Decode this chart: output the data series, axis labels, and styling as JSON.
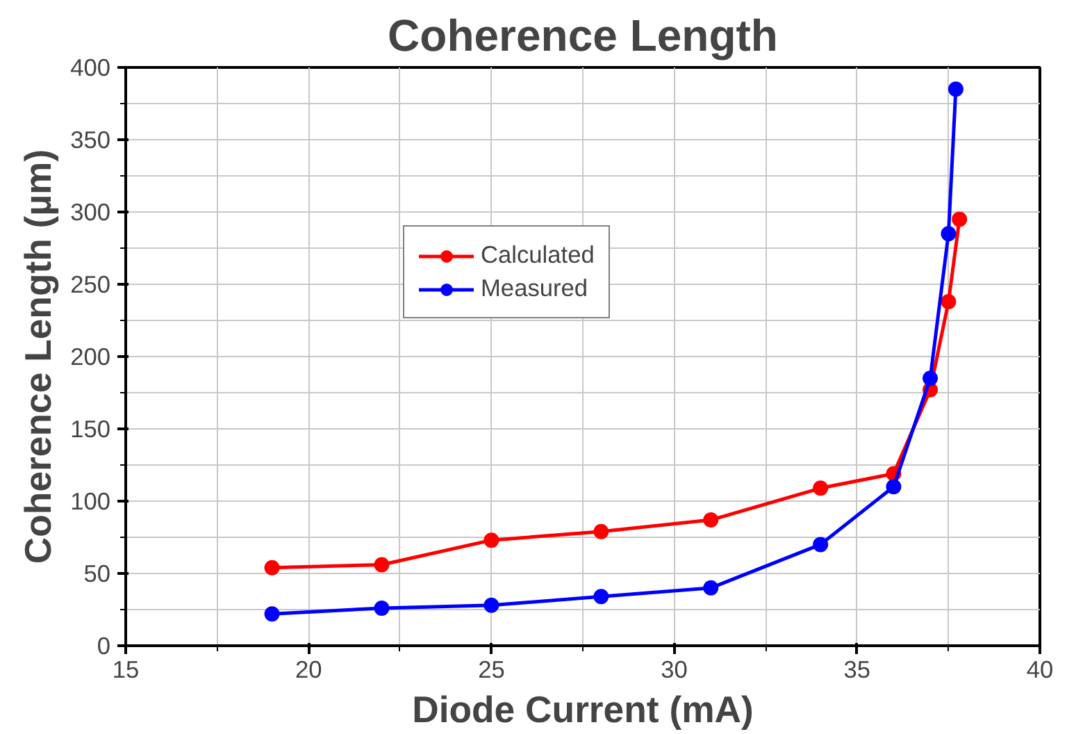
{
  "chart_data": {
    "type": "line",
    "title": "Coherence Length",
    "xlabel": "Diode Current (mA)",
    "ylabel": "Coherence Length (µm)",
    "xlim": [
      15,
      40
    ],
    "xticks": [
      15,
      20,
      25,
      30,
      35,
      40
    ],
    "ylim": [
      0,
      400
    ],
    "yticks": [
      0,
      50,
      100,
      150,
      200,
      250,
      300,
      350,
      400
    ],
    "grid": true,
    "legend": "top left",
    "marker": "circle",
    "line_style": "solid",
    "series": [
      {
        "name": "Calculated",
        "color": "#ff0000",
        "x": [
          19,
          22,
          25,
          28,
          31,
          34,
          36,
          37,
          37.5,
          37.8
        ],
        "values": [
          54,
          56,
          73,
          79,
          87,
          109,
          119,
          177,
          238,
          295
        ]
      },
      {
        "name": "Measured",
        "color": "#0000ff",
        "x": [
          19,
          22,
          25,
          28,
          31,
          34,
          36,
          37,
          37.5,
          37.7
        ],
        "values": [
          22,
          26,
          28,
          34,
          40,
          70,
          110,
          185,
          285,
          385
        ]
      }
    ]
  }
}
